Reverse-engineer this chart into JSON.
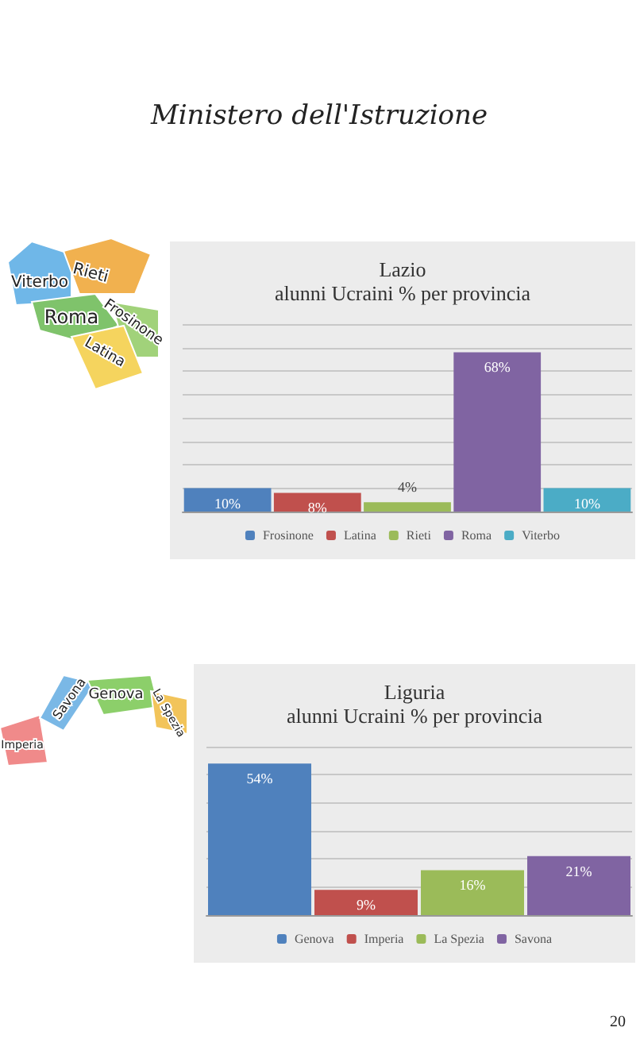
{
  "chart_data": [
    {
      "type": "bar",
      "title": "Lazio",
      "subtitle": "alunni Ucraini % per provincia",
      "categories": [
        null,
        null,
        null,
        null,
        null
      ],
      "stacked": true,
      "series": [
        {
          "name": "Frosinone",
          "color": "#4f81bd",
          "values": [
            10,
            null,
            null,
            null,
            null
          ],
          "value_labels": [
            "10%",
            null,
            null,
            null,
            null
          ]
        },
        {
          "name": "Latina",
          "color": "#c0504d",
          "values": [
            null,
            8,
            null,
            null,
            null
          ],
          "value_labels": [
            null,
            "8%",
            null,
            null,
            null
          ]
        },
        {
          "name": "Rieti",
          "color": "#9bbb59",
          "values": [
            null,
            null,
            4,
            null,
            null
          ],
          "value_labels": [
            null,
            null,
            "4%",
            null,
            null
          ]
        },
        {
          "name": "Roma",
          "color": "#8064a2",
          "values": [
            null,
            null,
            null,
            68,
            null
          ],
          "value_labels": [
            null,
            null,
            null,
            "68%",
            null
          ]
        },
        {
          "name": "Viterbo",
          "color": "#4bacc6",
          "values": [
            null,
            null,
            null,
            null,
            10
          ],
          "value_labels": [
            null,
            null,
            null,
            null,
            "10%"
          ]
        }
      ],
      "ylim": [
        0,
        80
      ],
      "yticks": [
        0,
        10,
        20,
        30,
        40,
        50,
        60,
        70,
        80
      ],
      "tick_labels": false,
      "grid": "y",
      "legend": "bottom",
      "annotations": [
        "Ministero dell'Istruzione",
        "Viterbo",
        "Rieti",
        "Roma",
        "Frosinone",
        "Latina"
      ]
    },
    {
      "type": "bar",
      "title": "Liguria",
      "subtitle": "alunni Ucraini % per provincia",
      "categories": [
        null,
        null,
        null,
        null
      ],
      "stacked": true,
      "series": [
        {
          "name": "Genova",
          "color": "#4f81bd",
          "values": [
            54,
            null,
            null,
            null
          ],
          "value_labels": [
            "54%",
            null,
            null,
            null
          ]
        },
        {
          "name": "Imperia",
          "color": "#c0504d",
          "values": [
            null,
            9,
            null,
            null
          ],
          "value_labels": [
            null,
            "9%",
            null,
            null
          ]
        },
        {
          "name": "La Spezia",
          "color": "#9bbb59",
          "values": [
            null,
            null,
            16,
            null
          ],
          "value_labels": [
            null,
            null,
            "16%",
            null
          ]
        },
        {
          "name": "Savona",
          "color": "#8064a2",
          "values": [
            null,
            null,
            null,
            21
          ],
          "value_labels": [
            null,
            null,
            null,
            "21%"
          ]
        }
      ],
      "ylim": [
        0,
        60
      ],
      "yticks": [
        0,
        10,
        20,
        30,
        40,
        50,
        60
      ],
      "tick_labels": false,
      "grid": "y",
      "legend": "bottom",
      "annotations": [
        "Imperia",
        "Savona",
        "Genova",
        "La Spezia",
        "20"
      ]
    }
  ]
}
